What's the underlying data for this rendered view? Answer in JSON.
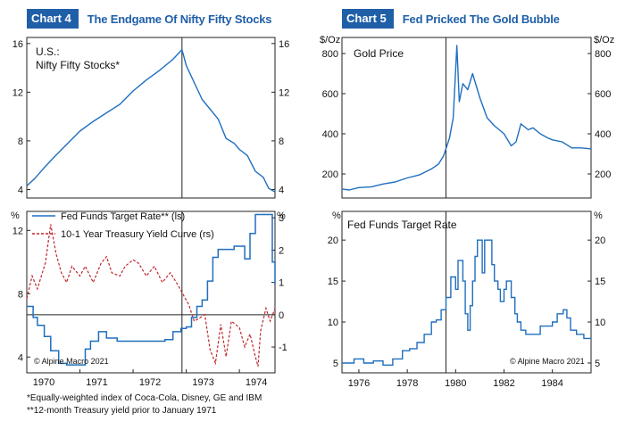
{
  "chart4": {
    "badge": "Chart 4",
    "title": "The Endgame Of Nifty Fifty Stocks",
    "footnotes": [
      "*Equally-weighted index of Coca-Cola, Disney, GE and IBM",
      "**12-month Treasury yield prior to January 1971"
    ]
  },
  "chart5": {
    "badge": "Chart 5",
    "title": "Fed Pricked The Gold Bubble"
  },
  "colors": {
    "series_blue": "#1f6fbf",
    "series_red": "#c0272d",
    "badge_blue": "#1f5fa8"
  },
  "chart_data": [
    {
      "id": "chart4-top",
      "type": "line",
      "title": "U.S.: Nifty Fifty Stocks*",
      "label_lines": [
        "U.S.:",
        "Nifty Fifty Stocks*"
      ],
      "ylim": [
        3.3,
        16.5
      ],
      "y_ticks": [
        4,
        8,
        12,
        16
      ],
      "x_range": [
        1970.0,
        1974.67
      ],
      "vline_x": 1972.92,
      "series": [
        {
          "name": "Nifty Fifty Stocks",
          "color": "#1f6fbf",
          "x": [
            1970.0,
            1970.15,
            1970.33,
            1970.5,
            1970.75,
            1971.0,
            1971.25,
            1971.5,
            1971.75,
            1972.0,
            1972.25,
            1972.5,
            1972.75,
            1972.92,
            1973.0,
            1973.15,
            1973.3,
            1973.45,
            1973.6,
            1973.75,
            1973.9,
            1974.0,
            1974.15,
            1974.3,
            1974.45,
            1974.55,
            1974.67
          ],
          "y": [
            4.3,
            4.9,
            5.8,
            6.6,
            7.7,
            8.8,
            9.6,
            10.3,
            11.0,
            12.1,
            13.0,
            13.8,
            14.7,
            15.5,
            14.2,
            12.8,
            11.4,
            10.6,
            9.8,
            8.2,
            7.8,
            7.3,
            6.8,
            5.5,
            5.0,
            4.1,
            3.8
          ]
        }
      ]
    },
    {
      "id": "chart4-bottom",
      "type": "line",
      "x_range": [
        1970.0,
        1974.67
      ],
      "x_ticks": [
        1970,
        1971,
        1972,
        1973,
        1974
      ],
      "x_tick_labels": [
        "1970",
        "1971",
        "1972",
        "1973",
        "1974"
      ],
      "vline_x": 1972.92,
      "left_unit": "%",
      "right_unit": "%",
      "left_ylim": [
        3.0,
        13.2
      ],
      "left_ticks": [
        4,
        8,
        12
      ],
      "right_ylim": [
        -1.8,
        3.2
      ],
      "right_ticks": [
        -1,
        0,
        1,
        2,
        3
      ],
      "zero_line": 0,
      "legend": [
        "Fed Funds Target Rate** (ls)",
        "10-1 Year Treasury Yield Curve (rs)"
      ],
      "annotation": "© Alpine Macro 2021",
      "series": [
        {
          "name": "Fed Funds Target Rate** (ls)",
          "axis": "left",
          "color": "#1f6fbf",
          "step": true,
          "x": [
            1970.0,
            1970.12,
            1970.2,
            1970.33,
            1970.45,
            1970.6,
            1970.75,
            1971.0,
            1971.1,
            1971.2,
            1971.35,
            1971.5,
            1971.7,
            1971.85,
            1972.0,
            1972.6,
            1972.75,
            1972.9,
            1973.0,
            1973.1,
            1973.2,
            1973.3,
            1973.4,
            1973.5,
            1973.6,
            1973.9,
            1974.0,
            1974.1,
            1974.2,
            1974.3,
            1974.55,
            1974.62,
            1974.67
          ],
          "y": [
            7.2,
            6.5,
            6.0,
            5.3,
            4.4,
            3.6,
            3.5,
            3.5,
            4.5,
            5.0,
            5.6,
            5.2,
            5.0,
            5.0,
            5.0,
            5.1,
            5.6,
            5.8,
            5.9,
            6.5,
            7.2,
            7.6,
            8.8,
            10.3,
            10.8,
            11.0,
            11.0,
            10.2,
            11.8,
            13.0,
            13.0,
            10.0,
            8.6
          ]
        },
        {
          "name": "10-1 Year Treasury Yield Curve (rs)",
          "axis": "right",
          "color": "#c0272d",
          "dashed": true,
          "x": [
            1970.0,
            1970.1,
            1970.2,
            1970.35,
            1970.45,
            1970.55,
            1970.65,
            1970.75,
            1970.85,
            1971.0,
            1971.1,
            1971.25,
            1971.4,
            1971.5,
            1971.6,
            1971.75,
            1971.85,
            1972.0,
            1972.1,
            1972.25,
            1972.4,
            1972.55,
            1972.7,
            1972.85,
            1972.95,
            1973.05,
            1973.15,
            1973.25,
            1973.35,
            1973.45,
            1973.55,
            1973.65,
            1973.75,
            1973.85,
            1974.0,
            1974.1,
            1974.2,
            1974.3,
            1974.35,
            1974.4,
            1974.5,
            1974.58,
            1974.67
          ],
          "y": [
            0.5,
            1.2,
            0.8,
            1.6,
            2.8,
            1.9,
            1.3,
            1.0,
            1.5,
            1.2,
            1.5,
            1.0,
            1.6,
            1.8,
            1.3,
            1.2,
            1.5,
            1.7,
            1.6,
            1.2,
            1.5,
            1.0,
            1.3,
            0.9,
            0.6,
            0.3,
            -0.2,
            -0.1,
            0.0,
            -1.1,
            -1.5,
            -0.3,
            -1.3,
            -0.2,
            -0.4,
            -1.0,
            -0.6,
            -1.3,
            -1.6,
            -0.5,
            0.2,
            -0.2,
            0.2
          ]
        }
      ]
    },
    {
      "id": "chart5-top",
      "type": "line",
      "title": "Gold Price",
      "left_unit": "$/Oz",
      "right_unit": "$/Oz",
      "ylim": [
        80,
        880
      ],
      "y_ticks": [
        200,
        400,
        600,
        800
      ],
      "x_range": [
        1975.3,
        1985.6
      ],
      "vline_x": 1979.6,
      "series": [
        {
          "name": "Gold Price",
          "color": "#1f6fbf",
          "x": [
            1975.3,
            1975.6,
            1976.0,
            1976.5,
            1977.0,
            1977.5,
            1978.0,
            1978.5,
            1979.0,
            1979.3,
            1979.5,
            1979.75,
            1979.9,
            1980.05,
            1980.15,
            1980.3,
            1980.5,
            1980.7,
            1980.9,
            1981.0,
            1981.3,
            1981.6,
            1981.8,
            1982.0,
            1982.3,
            1982.5,
            1982.7,
            1983.0,
            1983.2,
            1983.5,
            1983.8,
            1984.0,
            1984.4,
            1984.8,
            1985.2,
            1985.6
          ],
          "y": [
            125,
            120,
            132,
            135,
            150,
            160,
            180,
            195,
            225,
            250,
            290,
            380,
            480,
            840,
            560,
            650,
            620,
            700,
            620,
            580,
            480,
            440,
            420,
            400,
            340,
            360,
            450,
            420,
            430,
            400,
            380,
            370,
            360,
            330,
            330,
            325
          ]
        }
      ]
    },
    {
      "id": "chart5-bottom",
      "type": "line",
      "title": "Fed Funds Target Rate",
      "left_unit": "%",
      "right_unit": "%",
      "ylim": [
        3.8,
        23.5
      ],
      "y_ticks": [
        5,
        10,
        15,
        20
      ],
      "x_range": [
        1975.3,
        1985.6
      ],
      "x_ticks": [
        1976,
        1978,
        1980,
        1982,
        1984
      ],
      "x_tick_labels": [
        "1976",
        "1978",
        "1980",
        "1982",
        "1984"
      ],
      "vline_x": 1979.6,
      "annotation": "© Alpine Macro 2021",
      "series": [
        {
          "name": "Fed Funds Target Rate",
          "color": "#1f6fbf",
          "step": true,
          "x": [
            1975.3,
            1975.6,
            1975.8,
            1976.2,
            1976.6,
            1977.0,
            1977.4,
            1977.8,
            1978.1,
            1978.4,
            1978.7,
            1979.0,
            1979.2,
            1979.4,
            1979.6,
            1979.8,
            1980.0,
            1980.1,
            1980.3,
            1980.4,
            1980.5,
            1980.6,
            1980.7,
            1980.8,
            1980.9,
            1981.0,
            1981.1,
            1981.2,
            1981.5,
            1981.6,
            1981.75,
            1981.85,
            1982.0,
            1982.1,
            1982.3,
            1982.45,
            1982.55,
            1982.7,
            1982.9,
            1983.2,
            1983.5,
            1983.8,
            1984.0,
            1984.2,
            1984.45,
            1984.6,
            1984.75,
            1985.0,
            1985.3,
            1985.6
          ],
          "y": [
            5.0,
            5.0,
            5.5,
            5.0,
            5.25,
            4.75,
            5.5,
            6.5,
            6.75,
            7.5,
            8.5,
            10.0,
            10.25,
            11.5,
            13.0,
            15.5,
            14.0,
            17.5,
            15.0,
            11.0,
            9.0,
            12.0,
            15.0,
            18.0,
            20.0,
            20.0,
            16.0,
            20.0,
            17.0,
            15.0,
            14.0,
            12.5,
            14.0,
            15.0,
            13.0,
            11.0,
            10.0,
            9.0,
            8.5,
            8.5,
            9.5,
            9.5,
            10.0,
            11.0,
            11.5,
            10.5,
            9.0,
            8.5,
            8.0,
            8.0
          ]
        }
      ]
    }
  ]
}
